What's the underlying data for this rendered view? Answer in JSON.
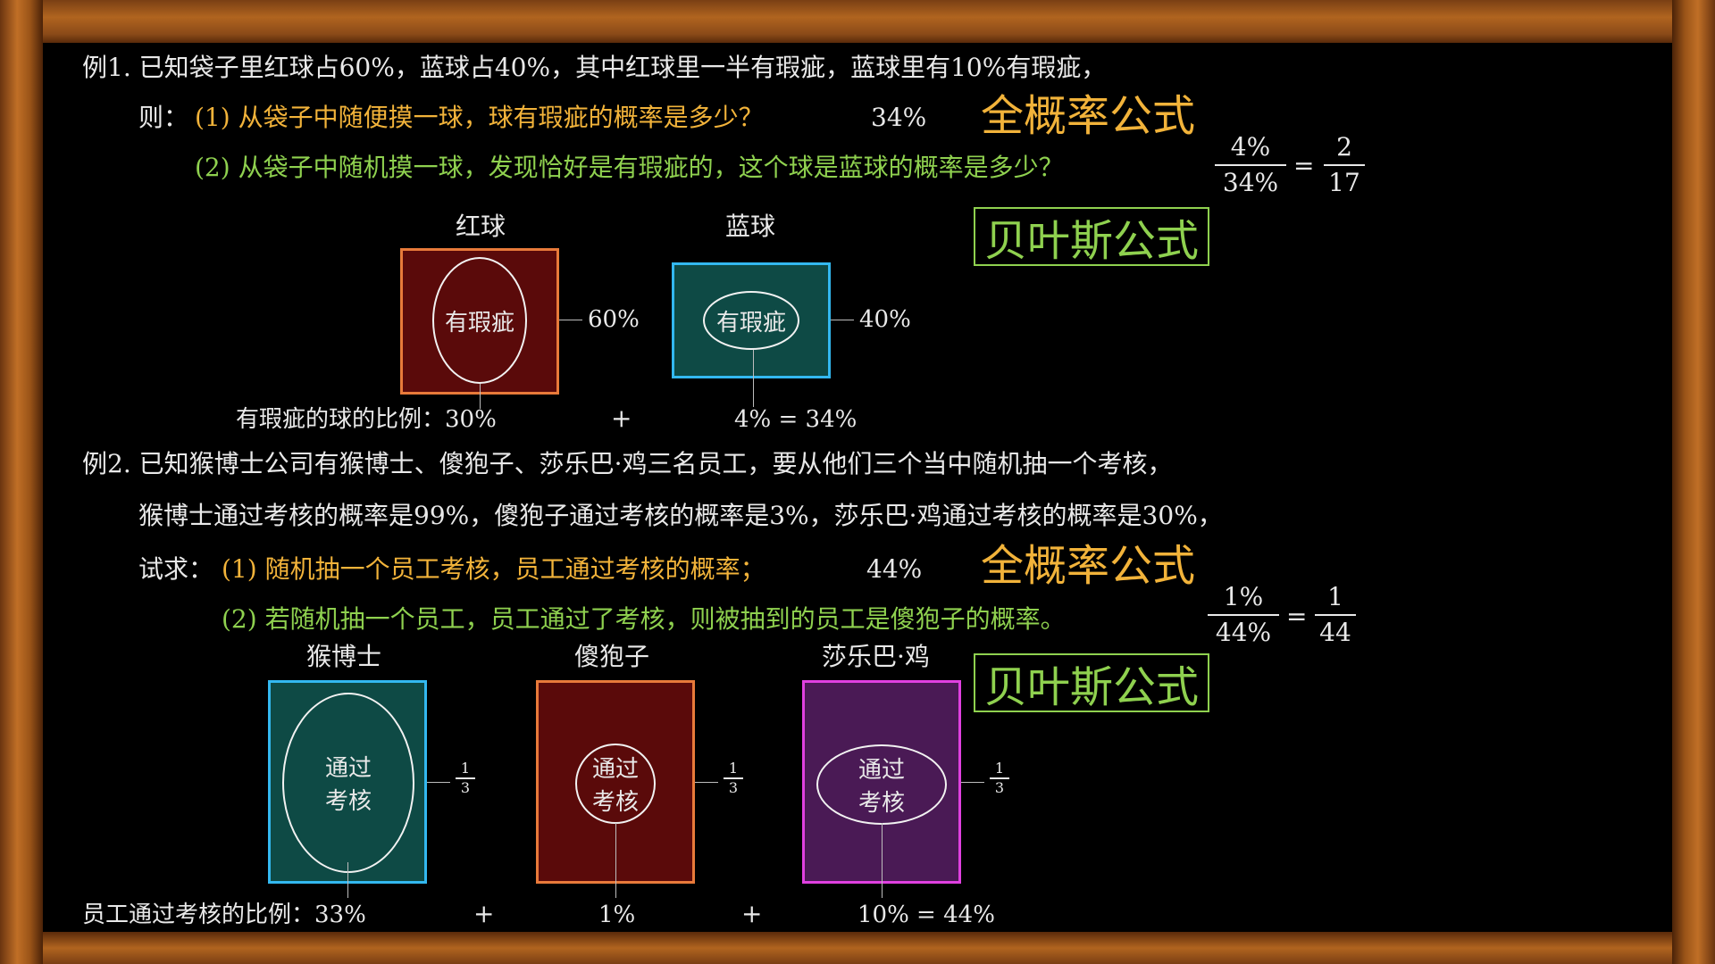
{
  "ex1": {
    "line1": "例1. 已知袋子里红球占60%，蓝球占40%，其中红球里一半有瑕疵，蓝球里有10%有瑕疵，",
    "prefix": "则：",
    "q1": "(1) 从袋子中随便摸一球，球有瑕疵的概率是多少？",
    "a1": "34%",
    "tag1": "全概率公式",
    "q2": "(2) 从袋子中随机摸一球，发现恰好是有瑕疵的，这个球是蓝球的概率是多少？",
    "frac_num": "4%",
    "frac_den": "34%",
    "eq": "=",
    "frac2_num": "2",
    "frac2_den": "17",
    "tag2": "贝叶斯公式",
    "red_title": "红球",
    "blue_title": "蓝球",
    "defect_label": "有瑕疵",
    "red_pct": "60%",
    "blue_pct": "40%",
    "ratio_label": "有瑕疵的球的比例：30%",
    "plus": "+",
    "ratio_blue": "4% = 34%",
    "colors": {
      "red_box_border": "#e87a3a",
      "red_box_fill": "#5a0a0a",
      "blue_box_border": "#33b8f0",
      "blue_box_fill": "#0e4a45"
    }
  },
  "ex2": {
    "line1": "例2. 已知猴博士公司有猴博士、傻狍子、莎乐巴·鸡三名员工，要从他们三个当中随机抽一个考核，",
    "line2": "猴博士通过考核的概率是99%，傻狍子通过考核的概率是3%，莎乐巴·鸡通过考核的概率是30%，",
    "prefix": "试求：",
    "q1": "(1) 随机抽一个员工考核，员工通过考核的概率；",
    "a1": "44%",
    "tag1": "全概率公式",
    "q2": "(2) 若随机抽一个员工，员工通过了考核，则被抽到的员工是傻狍子的概率。",
    "frac_num": "1%",
    "frac_den": "44%",
    "eq": "=",
    "frac2_num": "1",
    "frac2_den": "44",
    "tag2": "贝叶斯公式",
    "names": [
      "猴博士",
      "傻狍子",
      "莎乐巴·鸡"
    ],
    "pass_line1": "通过",
    "pass_line2": "考核",
    "third_num": "1",
    "third_den": "3",
    "ratio_label": "员工通过考核的比例：33%",
    "plus": "+",
    "mid_pct": "1%",
    "last": "10% = 44%",
    "colors": {
      "box1_border": "#33b8f0",
      "box1_fill": "#0e4a45",
      "box2_border": "#e87a3a",
      "box2_fill": "#5a0a0a",
      "box3_border": "#e040e0",
      "box3_fill": "#4a1a55"
    }
  }
}
